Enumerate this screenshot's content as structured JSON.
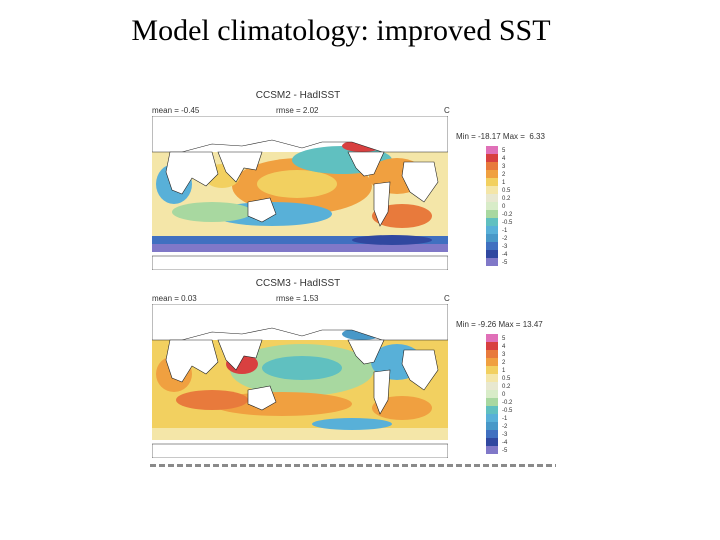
{
  "slide": {
    "title": "Model climatology: improved SST"
  },
  "colorbar": {
    "levels": [
      "5",
      "4",
      "3",
      "2",
      "1",
      "0.5",
      "0.2",
      "0",
      "-0.2",
      "-0.5",
      "-1",
      "-2",
      "-3",
      "-4",
      "-5"
    ],
    "colors": [
      "#e070b8",
      "#d84040",
      "#e87a3c",
      "#f0a040",
      "#f2d060",
      "#f4e6a8",
      "#e8e8d0",
      "#d8ecc8",
      "#a8d8a0",
      "#60c0c0",
      "#58b0d8",
      "#4898c8",
      "#4070c0",
      "#3048a0",
      "#8078c8"
    ]
  },
  "panels": [
    {
      "title": "CCSM2 - HadISST",
      "mean_label": "mean = ",
      "mean_value": "-0.45",
      "rmse_label": "rmse = ",
      "rmse_value": "2.02",
      "unit": "C",
      "minmax": "Min = -18.17 Max =  6.33"
    },
    {
      "title": "CCSM3 - HadISST",
      "mean_label": "mean = ",
      "mean_value": "0.03",
      "rmse_label": "rmse = ",
      "rmse_value": "1.53",
      "unit": "C",
      "minmax": "Min = -9.26 Max = 13.47"
    }
  ]
}
